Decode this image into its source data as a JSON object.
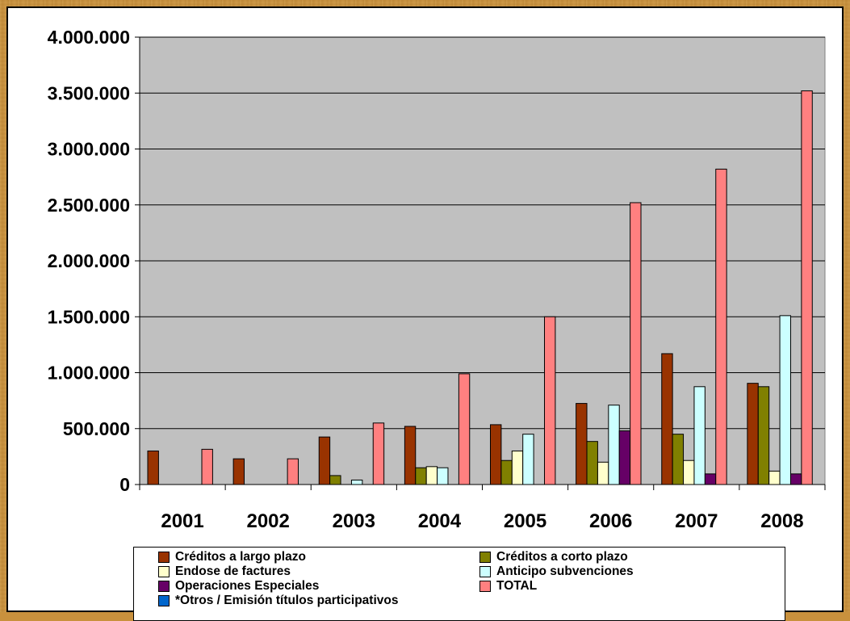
{
  "chart_data": {
    "type": "bar",
    "title": "",
    "xlabel": "",
    "ylabel": "",
    "categories": [
      "2001",
      "2002",
      "2003",
      "2004",
      "2005",
      "2006",
      "2007",
      "2008"
    ],
    "ylim": [
      0,
      4000000
    ],
    "y_ticks": [
      0,
      500000,
      1000000,
      1500000,
      2000000,
      2500000,
      3000000,
      3500000,
      4000000
    ],
    "y_tick_labels": [
      "0",
      "500.000",
      "1.000.000",
      "1.500.000",
      "2.000.000",
      "2.500.000",
      "3.000.000",
      "3.500.000",
      "4.000.000"
    ],
    "grid": true,
    "legend_position": "bottom",
    "plot_background": "#c0c0c0",
    "series": [
      {
        "name": "Créditos a largo plazo",
        "color": "#993300",
        "values": [
          300000,
          230000,
          425000,
          520000,
          535000,
          725000,
          1170000,
          905000
        ]
      },
      {
        "name": "Créditos a corto plazo",
        "color": "#808000",
        "values": [
          0,
          0,
          80000,
          150000,
          215000,
          385000,
          450000,
          875000
        ]
      },
      {
        "name": "Endose de factures",
        "color": "#ffffcc",
        "values": [
          0,
          0,
          0,
          160000,
          300000,
          200000,
          215000,
          120000
        ]
      },
      {
        "name": "Anticipo subvenciones",
        "color": "#ccffff",
        "values": [
          0,
          0,
          40000,
          150000,
          450000,
          710000,
          875000,
          1510000
        ]
      },
      {
        "name": "Operaciones Especiales",
        "color": "#660066",
        "values": [
          0,
          0,
          0,
          0,
          0,
          480000,
          95000,
          95000
        ]
      },
      {
        "name": "TOTAL",
        "color": "#ff8080",
        "values": [
          315000,
          230000,
          550000,
          990000,
          1500000,
          2520000,
          2820000,
          3520000
        ]
      },
      {
        "name": "*Otros / Emisión títulos participativos",
        "color": "#0066cc",
        "values": [
          0,
          0,
          0,
          0,
          0,
          0,
          0,
          0
        ]
      }
    ]
  }
}
